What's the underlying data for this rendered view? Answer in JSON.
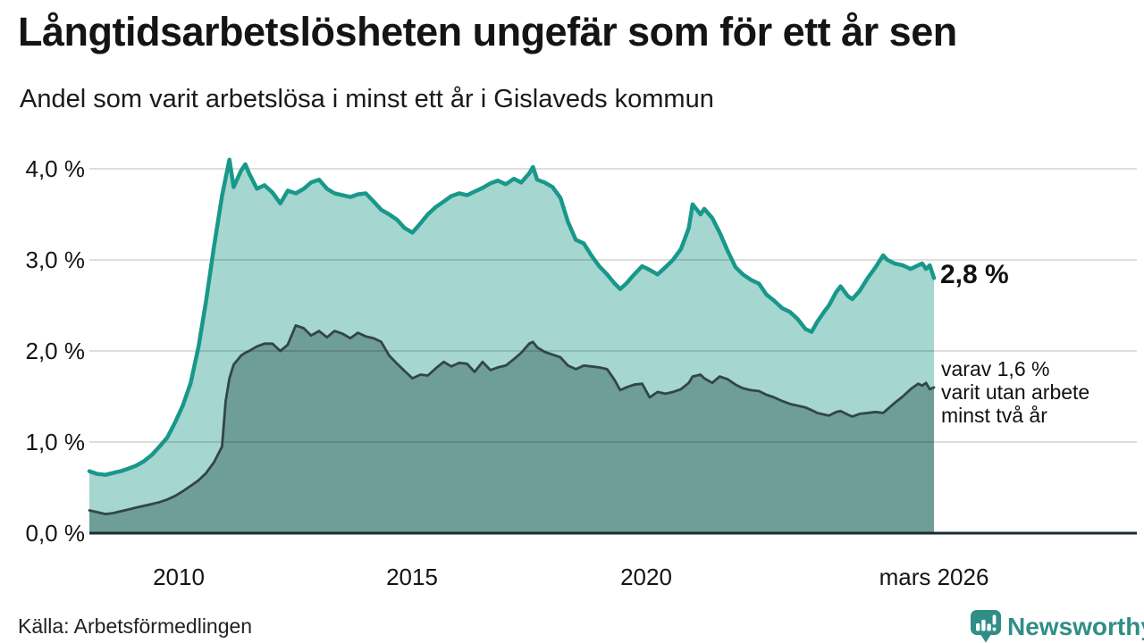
{
  "header": {
    "title": "Långtidsarbetslösheten ungefär som för ett år sen",
    "subtitle": "Andel som varit arbetslösa i minst ett år i Gislaveds kommun"
  },
  "footer": {
    "source": "Källa: Arbetsförmedlingen",
    "brand": "Newsworthy",
    "brand_icon": "bar-chart-speech-bubble-icon",
    "brand_color": "#2f8e86"
  },
  "colors": {
    "background": "#ffffff",
    "text": "#141414",
    "grid": "#dbdbdb",
    "axis": "#1c2b33",
    "total_line": "#18988a",
    "total_fill": "#a5d6cf",
    "two_year_line": "#32454c",
    "two_year_fill": "#6f9d97"
  },
  "chart_data": {
    "type": "area",
    "title": "Långtidsarbetslösheten ungefär som för ett år sen",
    "subtitle": "Andel som varit arbetslösa i minst ett år i Gislaveds kommun",
    "unit": "%",
    "grid": true,
    "legend_position": "end-labels-right",
    "xlim": [
      2008.08,
      2026.17
    ],
    "ylim": [
      0,
      4.25
    ],
    "y_ticks": [
      {
        "value": 0,
        "label": "0,0 %"
      },
      {
        "value": 1,
        "label": "1,0 %"
      },
      {
        "value": 2,
        "label": "2,0 %"
      },
      {
        "value": 3,
        "label": "3,0 %"
      },
      {
        "value": 4,
        "label": "4,0 %"
      }
    ],
    "x_ticks": [
      {
        "value": 2010,
        "label": "2010"
      },
      {
        "value": 2015,
        "label": "2015"
      },
      {
        "value": 2020,
        "label": "2020"
      },
      {
        "value": 2026.17,
        "label": "mars 2026"
      }
    ],
    "end_labels": {
      "total": "2,8 %",
      "two_year": "varav 1,6 %\nvarit utan arbete\nminst två år"
    },
    "x": [
      2008.08,
      2008.25,
      2008.42,
      2008.58,
      2008.75,
      2008.92,
      2009.08,
      2009.25,
      2009.42,
      2009.58,
      2009.75,
      2009.92,
      2010.08,
      2010.25,
      2010.42,
      2010.58,
      2010.75,
      2010.92,
      2011.0,
      2011.08,
      2011.17,
      2011.33,
      2011.42,
      2011.5,
      2011.67,
      2011.83,
      2012.0,
      2012.17,
      2012.33,
      2012.5,
      2012.67,
      2012.83,
      2013.0,
      2013.17,
      2013.33,
      2013.5,
      2013.67,
      2013.83,
      2014.0,
      2014.17,
      2014.33,
      2014.5,
      2014.67,
      2014.83,
      2015.0,
      2015.17,
      2015.33,
      2015.5,
      2015.67,
      2015.83,
      2016.0,
      2016.17,
      2016.33,
      2016.5,
      2016.67,
      2016.83,
      2017.0,
      2017.17,
      2017.33,
      2017.5,
      2017.58,
      2017.67,
      2017.83,
      2018.0,
      2018.17,
      2018.33,
      2018.5,
      2018.67,
      2018.83,
      2019.0,
      2019.17,
      2019.33,
      2019.45,
      2019.58,
      2019.75,
      2019.92,
      2020.08,
      2020.25,
      2020.42,
      2020.58,
      2020.75,
      2020.92,
      2021.0,
      2021.17,
      2021.25,
      2021.42,
      2021.58,
      2021.75,
      2021.92,
      2022.08,
      2022.25,
      2022.42,
      2022.58,
      2022.75,
      2022.92,
      2023.08,
      2023.25,
      2023.42,
      2023.55,
      2023.67,
      2023.83,
      2023.92,
      2024.08,
      2024.17,
      2024.33,
      2024.42,
      2024.58,
      2024.75,
      2024.92,
      2025.08,
      2025.17,
      2025.33,
      2025.5,
      2025.67,
      2025.83,
      2025.92,
      2026.0,
      2026.08,
      2026.17
    ],
    "series": [
      {
        "name": "Andel arbetslösa minst ett år",
        "line_color": "#18988a",
        "fill_color": "#a5d6cf",
        "end_value": 2.8,
        "values": [
          0.68,
          0.65,
          0.64,
          0.66,
          0.68,
          0.71,
          0.74,
          0.79,
          0.86,
          0.95,
          1.05,
          1.22,
          1.4,
          1.65,
          2.05,
          2.55,
          3.15,
          3.7,
          3.9,
          4.1,
          3.8,
          3.98,
          4.05,
          3.95,
          3.78,
          3.82,
          3.74,
          3.62,
          3.76,
          3.73,
          3.78,
          3.85,
          3.88,
          3.78,
          3.73,
          3.71,
          3.69,
          3.72,
          3.73,
          3.64,
          3.55,
          3.5,
          3.44,
          3.35,
          3.3,
          3.4,
          3.5,
          3.58,
          3.64,
          3.7,
          3.73,
          3.71,
          3.75,
          3.79,
          3.84,
          3.87,
          3.83,
          3.89,
          3.85,
          3.95,
          4.02,
          3.88,
          3.85,
          3.8,
          3.68,
          3.42,
          3.22,
          3.18,
          3.05,
          2.93,
          2.84,
          2.74,
          2.68,
          2.74,
          2.84,
          2.93,
          2.89,
          2.84,
          2.92,
          3.0,
          3.12,
          3.35,
          3.61,
          3.5,
          3.56,
          3.46,
          3.3,
          3.1,
          2.92,
          2.84,
          2.78,
          2.74,
          2.62,
          2.55,
          2.47,
          2.43,
          2.35,
          2.24,
          2.21,
          2.32,
          2.44,
          2.5,
          2.65,
          2.71,
          2.6,
          2.57,
          2.66,
          2.8,
          2.92,
          3.05,
          3.0,
          2.96,
          2.94,
          2.9,
          2.94,
          2.96,
          2.9,
          2.94,
          2.8
        ]
      },
      {
        "name": "Varav utan arbete minst två år",
        "line_color": "#32454c",
        "fill_color": "#6f9d97",
        "end_value": 1.6,
        "values": [
          0.25,
          0.23,
          0.21,
          0.22,
          0.24,
          0.26,
          0.28,
          0.3,
          0.32,
          0.34,
          0.37,
          0.41,
          0.46,
          0.52,
          0.58,
          0.66,
          0.78,
          0.95,
          1.45,
          1.7,
          1.85,
          1.95,
          1.98,
          2.0,
          2.05,
          2.08,
          2.08,
          2.0,
          2.07,
          2.28,
          2.25,
          2.17,
          2.22,
          2.15,
          2.22,
          2.19,
          2.14,
          2.2,
          2.16,
          2.14,
          2.1,
          1.95,
          1.86,
          1.78,
          1.7,
          1.74,
          1.73,
          1.81,
          1.88,
          1.83,
          1.87,
          1.86,
          1.77,
          1.88,
          1.79,
          1.82,
          1.84,
          1.91,
          1.98,
          2.08,
          2.1,
          2.04,
          1.99,
          1.96,
          1.93,
          1.84,
          1.8,
          1.84,
          1.83,
          1.82,
          1.8,
          1.68,
          1.57,
          1.6,
          1.63,
          1.64,
          1.49,
          1.55,
          1.53,
          1.55,
          1.58,
          1.65,
          1.72,
          1.74,
          1.7,
          1.65,
          1.72,
          1.69,
          1.63,
          1.59,
          1.57,
          1.56,
          1.52,
          1.49,
          1.45,
          1.42,
          1.4,
          1.38,
          1.35,
          1.32,
          1.3,
          1.29,
          1.33,
          1.34,
          1.3,
          1.28,
          1.31,
          1.32,
          1.33,
          1.32,
          1.36,
          1.43,
          1.5,
          1.58,
          1.64,
          1.62,
          1.65,
          1.58,
          1.6
        ]
      }
    ]
  }
}
